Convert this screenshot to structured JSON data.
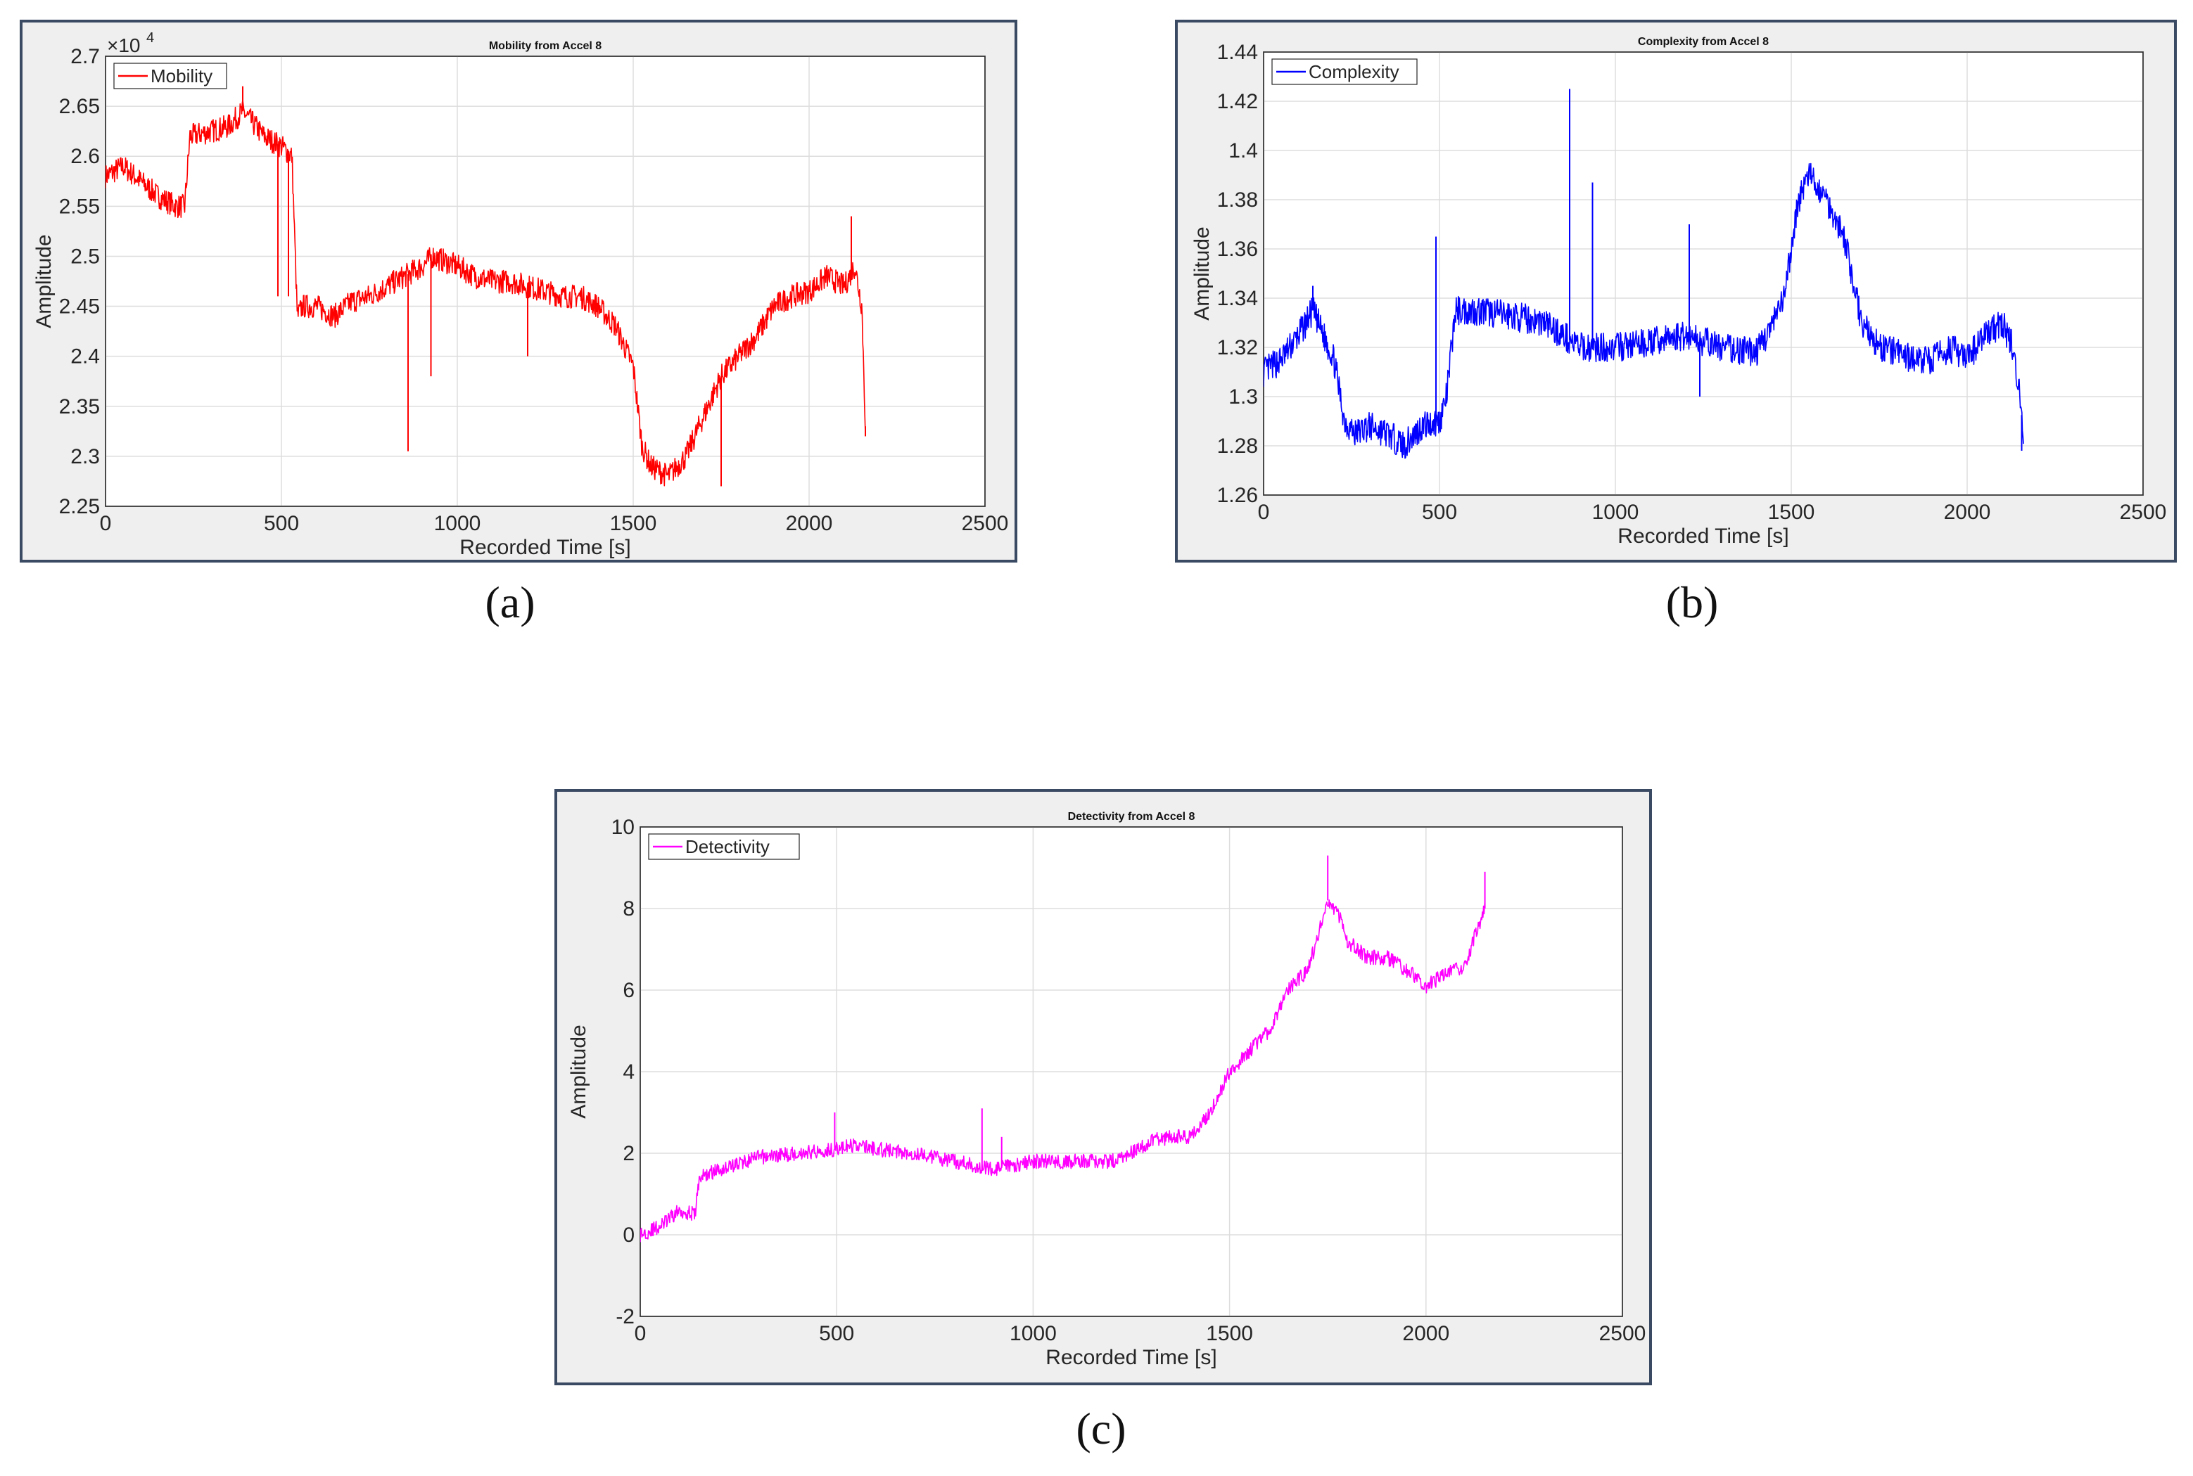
{
  "figure": {
    "captions": [
      "(a)",
      "(b)",
      "(c)"
    ]
  },
  "colors": {
    "mobility": "#ff0000",
    "complexity": "#0000ff",
    "detectivity": "#ff00ff",
    "frame": "#3b4a63",
    "grid": "#dddddd"
  },
  "chart_data": [
    {
      "type": "line",
      "title": "Mobility from Accel 8",
      "xlabel": "Recorded Time [s]",
      "ylabel": "Amplitude",
      "y_multiplier": "×10",
      "y_multiplier_exponent": "4",
      "xlim": [
        0,
        2500
      ],
      "ylim": [
        2.25,
        2.7
      ],
      "xticks": [
        0,
        500,
        1000,
        1500,
        2000,
        2500
      ],
      "xtick_labels": [
        "0",
        "500",
        "1000",
        "1500",
        "2000",
        "2500"
      ],
      "yticks": [
        2.25,
        2.3,
        2.35,
        2.4,
        2.45,
        2.5,
        2.55,
        2.6,
        2.65,
        2.7
      ],
      "ytick_labels": [
        "2.25",
        "2.3",
        "2.35",
        "2.4",
        "2.45",
        "2.5",
        "2.55",
        "2.6",
        "2.65",
        "2.7"
      ],
      "grid": true,
      "legend_position": "top-left",
      "series": [
        {
          "name": "Mobility",
          "x": [
            0,
            50,
            100,
            150,
            200,
            225,
            240,
            300,
            350,
            390,
            450,
            500,
            530,
            545,
            560,
            600,
            650,
            700,
            750,
            800,
            850,
            900,
            930,
            1000,
            1050,
            1100,
            1150,
            1200,
            1250,
            1300,
            1350,
            1400,
            1450,
            1500,
            1525,
            1550,
            1600,
            1650,
            1700,
            1750,
            1800,
            1850,
            1900,
            1950,
            2000,
            2050,
            2100,
            2130,
            2150,
            2160
          ],
          "y": [
            2.58,
            2.59,
            2.575,
            2.56,
            2.55,
            2.55,
            2.62,
            2.625,
            2.63,
            2.645,
            2.62,
            2.61,
            2.6,
            2.44,
            2.45,
            2.45,
            2.44,
            2.455,
            2.46,
            2.47,
            2.48,
            2.49,
            2.5,
            2.49,
            2.48,
            2.475,
            2.475,
            2.47,
            2.465,
            2.46,
            2.46,
            2.45,
            2.43,
            2.39,
            2.31,
            2.29,
            2.28,
            2.3,
            2.34,
            2.38,
            2.4,
            2.42,
            2.45,
            2.46,
            2.465,
            2.48,
            2.47,
            2.49,
            2.45,
            2.33
          ],
          "spikes": [
            {
              "x": 390,
              "y": 2.67
            },
            {
              "x": 490,
              "y": 2.46
            },
            {
              "x": 520,
              "y": 2.46
            },
            {
              "x": 860,
              "y": 2.305
            },
            {
              "x": 925,
              "y": 2.38
            },
            {
              "x": 1200,
              "y": 2.4
            },
            {
              "x": 1750,
              "y": 2.27
            },
            {
              "x": 2120,
              "y": 2.54
            },
            {
              "x": 2160,
              "y": 2.32
            }
          ]
        }
      ]
    },
    {
      "type": "line",
      "title": "Complexity from Accel 8",
      "xlabel": "Recorded Time [s]",
      "ylabel": "Amplitude",
      "xlim": [
        0,
        2500
      ],
      "ylim": [
        1.26,
        1.44
      ],
      "xticks": [
        0,
        500,
        1000,
        1500,
        2000,
        2500
      ],
      "xtick_labels": [
        "0",
        "500",
        "1000",
        "1500",
        "2000",
        "2500"
      ],
      "yticks": [
        1.26,
        1.28,
        1.3,
        1.32,
        1.34,
        1.36,
        1.38,
        1.4,
        1.42,
        1.44
      ],
      "ytick_labels": [
        "1.26",
        "1.28",
        "1.3",
        "1.32",
        "1.34",
        "1.36",
        "1.38",
        "1.4",
        "1.42",
        "1.44"
      ],
      "grid": true,
      "legend_position": "top-left",
      "series": [
        {
          "name": "Complexity",
          "x": [
            0,
            50,
            100,
            140,
            200,
            230,
            260,
            300,
            350,
            400,
            450,
            500,
            520,
            545,
            600,
            700,
            800,
            850,
            900,
            1000,
            1100,
            1200,
            1300,
            1400,
            1450,
            1480,
            1520,
            1550,
            1600,
            1650,
            1700,
            1750,
            1800,
            1850,
            1900,
            1950,
            2000,
            2050,
            2100,
            2130,
            2150,
            2160
          ],
          "y": [
            1.31,
            1.315,
            1.325,
            1.335,
            1.315,
            1.29,
            1.285,
            1.288,
            1.285,
            1.28,
            1.288,
            1.29,
            1.3,
            1.335,
            1.335,
            1.333,
            1.33,
            1.325,
            1.32,
            1.32,
            1.322,
            1.325,
            1.32,
            1.318,
            1.33,
            1.34,
            1.38,
            1.39,
            1.38,
            1.365,
            1.33,
            1.32,
            1.318,
            1.315,
            1.315,
            1.32,
            1.315,
            1.325,
            1.33,
            1.32,
            1.3,
            1.285
          ],
          "spikes": [
            {
              "x": 140,
              "y": 1.345
            },
            {
              "x": 490,
              "y": 1.365
            },
            {
              "x": 870,
              "y": 1.425
            },
            {
              "x": 935,
              "y": 1.387
            },
            {
              "x": 1210,
              "y": 1.37
            },
            {
              "x": 1240,
              "y": 1.3
            },
            {
              "x": 2155,
              "y": 1.278
            }
          ]
        }
      ]
    },
    {
      "type": "line",
      "title": "Detectivity from Accel 8",
      "xlabel": "Recorded Time [s]",
      "ylabel": "Amplitude",
      "xlim": [
        0,
        2500
      ],
      "ylim": [
        -2,
        10
      ],
      "xticks": [
        0,
        500,
        1000,
        1500,
        2000,
        2500
      ],
      "xtick_labels": [
        "0",
        "500",
        "1000",
        "1500",
        "2000",
        "2500"
      ],
      "yticks": [
        -2,
        0,
        2,
        4,
        6,
        8,
        10
      ],
      "ytick_labels": [
        "-2",
        "0",
        "2",
        "4",
        "6",
        "8",
        "10"
      ],
      "grid": true,
      "legend_position": "top-left",
      "series": [
        {
          "name": "Detectivity",
          "x": [
            0,
            50,
            100,
            140,
            150,
            200,
            300,
            400,
            500,
            550,
            600,
            700,
            800,
            900,
            950,
            1000,
            1100,
            1200,
            1250,
            1300,
            1350,
            1400,
            1450,
            1500,
            1550,
            1600,
            1650,
            1700,
            1730,
            1750,
            1780,
            1800,
            1850,
            1900,
            1950,
            2000,
            2050,
            2100,
            2130,
            2150
          ],
          "y": [
            0,
            0.2,
            0.6,
            0.5,
            1.4,
            1.6,
            1.9,
            2.0,
            2.1,
            2.2,
            2.1,
            2.0,
            1.8,
            1.6,
            1.7,
            1.8,
            1.8,
            1.8,
            2.0,
            2.3,
            2.4,
            2.4,
            3.0,
            4.0,
            4.5,
            5.0,
            6.0,
            6.5,
            7.5,
            8.2,
            7.8,
            7.2,
            6.8,
            6.8,
            6.5,
            6.1,
            6.4,
            6.6,
            7.5,
            8.0
          ],
          "spikes": [
            {
              "x": 495,
              "y": 3.0
            },
            {
              "x": 870,
              "y": 3.1
            },
            {
              "x": 920,
              "y": 2.4
            },
            {
              "x": 1750,
              "y": 9.3
            },
            {
              "x": 2150,
              "y": 8.9
            }
          ]
        }
      ]
    }
  ]
}
